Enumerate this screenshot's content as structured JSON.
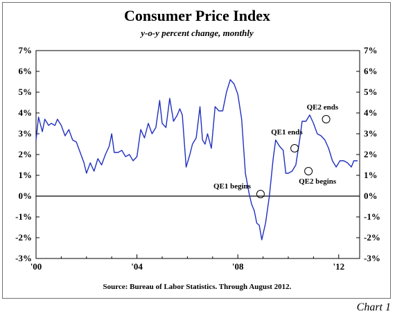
{
  "chart_data": {
    "type": "line",
    "title": "Consumer Price Index",
    "subtitle": "y-o-y percent change, monthly",
    "source": "Source: Bureau of Labor Statistics. Through August 2012.",
    "footer_label": "Chart 1",
    "xlabel": "",
    "ylabel": "",
    "ylim": [
      -3,
      7
    ],
    "xlim": [
      2000.0,
      2012.83
    ],
    "y_ticks": [
      7,
      6,
      5,
      4,
      3,
      2,
      1,
      0,
      -1,
      -2,
      -3
    ],
    "y_tick_labels": [
      "7%",
      "6%",
      "5%",
      "4%",
      "3%",
      "2%",
      "1%",
      "0%",
      "-1%",
      "-2%",
      "-3%"
    ],
    "x_ticks": [
      2000,
      2004,
      2008,
      2012
    ],
    "x_tick_labels": [
      "'00",
      "'04",
      "'08",
      "'12"
    ],
    "grid": false,
    "series": [
      {
        "color": "#1f2fbf",
        "x": [
          2000.0,
          2000.1,
          2000.25,
          2000.35,
          2000.5,
          2000.6,
          2000.75,
          2000.85,
          2001.0,
          2001.15,
          2001.3,
          2001.45,
          2001.6,
          2001.75,
          2001.9,
          2002.0,
          2002.15,
          2002.3,
          2002.45,
          2002.6,
          2002.75,
          2002.9,
          2003.0,
          2003.1,
          2003.25,
          2003.4,
          2003.55,
          2003.7,
          2003.85,
          2004.0,
          2004.15,
          2004.3,
          2004.45,
          2004.6,
          2004.75,
          2004.9,
          2005.0,
          2005.15,
          2005.3,
          2005.45,
          2005.6,
          2005.7,
          2005.8,
          2005.95,
          2006.1,
          2006.2,
          2006.35,
          2006.5,
          2006.6,
          2006.7,
          2006.8,
          2006.95,
          2007.1,
          2007.25,
          2007.4,
          2007.55,
          2007.7,
          2007.85,
          2008.0,
          2008.15,
          2008.3,
          2008.45,
          2008.55,
          2008.65,
          2008.75,
          2008.85,
          2008.95,
          2009.1,
          2009.25,
          2009.4,
          2009.5,
          2009.65,
          2009.8,
          2009.9,
          2010.0,
          2010.15,
          2010.3,
          2010.45,
          2010.55,
          2010.7,
          2010.85,
          2011.0,
          2011.15,
          2011.3,
          2011.45,
          2011.6,
          2011.75,
          2011.9,
          2012.05,
          2012.2,
          2012.35,
          2012.5,
          2012.6,
          2012.75
        ],
        "y": [
          2.7,
          3.8,
          3.1,
          3.7,
          3.4,
          3.5,
          3.4,
          3.7,
          3.4,
          2.9,
          3.2,
          2.7,
          2.6,
          2.1,
          1.6,
          1.1,
          1.6,
          1.2,
          1.8,
          1.5,
          2.0,
          2.4,
          3.0,
          2.1,
          2.1,
          2.2,
          1.9,
          2.0,
          1.7,
          1.9,
          3.2,
          2.8,
          3.5,
          3.0,
          3.3,
          4.6,
          3.5,
          3.3,
          4.7,
          3.6,
          3.9,
          4.2,
          3.9,
          1.4,
          2.0,
          2.5,
          2.8,
          4.3,
          2.7,
          2.5,
          3.0,
          2.3,
          4.3,
          4.1,
          4.1,
          5.0,
          5.6,
          5.4,
          4.9,
          3.7,
          1.1,
          0.1,
          -0.4,
          -0.7,
          -1.3,
          -1.4,
          -2.1,
          -1.3,
          0.0,
          1.8,
          2.7,
          2.4,
          2.2,
          1.1,
          1.1,
          1.2,
          1.5,
          2.7,
          3.6,
          3.6,
          3.9,
          3.5,
          3.0,
          2.9,
          2.7,
          2.3,
          1.7,
          1.4,
          1.7,
          1.7,
          1.6,
          1.4,
          1.7,
          1.7
        ]
      }
    ],
    "annotations": [
      {
        "label": "QE1 begins",
        "x": 2008.9,
        "y": 0.1
      },
      {
        "label": "QE1 ends",
        "x": 2010.25,
        "y": 2.3
      },
      {
        "label": "QE2 begins",
        "x": 2010.8,
        "y": 1.2
      },
      {
        "label": "QE2 ends",
        "x": 2011.5,
        "y": 3.7
      }
    ]
  }
}
